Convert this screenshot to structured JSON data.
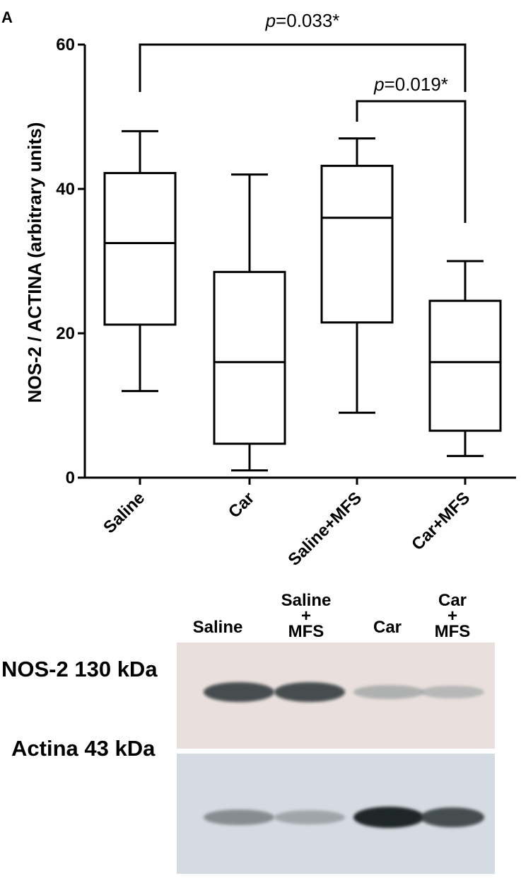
{
  "panel_label": "A",
  "chart_data": {
    "type": "box",
    "ylabel": "NOS-2 / ACTINA (arbitrary units)",
    "xlabel": "",
    "ylim": [
      0,
      60
    ],
    "yticks": [
      0,
      20,
      40,
      60
    ],
    "categories": [
      "Saline",
      "Car",
      "Saline+MFS",
      "Car+MFS"
    ],
    "boxes": [
      {
        "category": "Saline",
        "min": 12,
        "q1": 21.2,
        "median": 32.5,
        "q3": 42.2,
        "max": 48
      },
      {
        "category": "Car",
        "min": 1,
        "q1": 4.7,
        "median": 16,
        "q3": 28.5,
        "max": 42
      },
      {
        "category": "Saline+MFS",
        "min": 9,
        "q1": 21.5,
        "median": 36,
        "q3": 43.2,
        "max": 47
      },
      {
        "category": "Car+MFS",
        "min": 3,
        "q1": 6.5,
        "median": 16,
        "q3": 24.5,
        "max": 30
      }
    ],
    "comparisons": [
      {
        "from": "Saline",
        "to": "Car+MFS",
        "p_prefix": "p",
        "p_value": "=0.033*"
      },
      {
        "from": "Saline+MFS",
        "to": "Car+MFS",
        "p_prefix": "p",
        "p_value": "=0.019*"
      }
    ]
  },
  "western_blot": {
    "lane_labels": [
      "Saline",
      "Saline\n+\nMFS",
      "Car",
      "Car\n+\nMFS"
    ],
    "rows": [
      {
        "label": "NOS-2 130 kDa",
        "band_intensity": [
          0.85,
          0.85,
          0.35,
          0.3
        ],
        "background": "#e9e0dd"
      },
      {
        "label": "Actina 43 kDa",
        "band_intensity": [
          0.55,
          0.4,
          1.0,
          0.85
        ],
        "background": "#d4dbe2"
      }
    ]
  }
}
